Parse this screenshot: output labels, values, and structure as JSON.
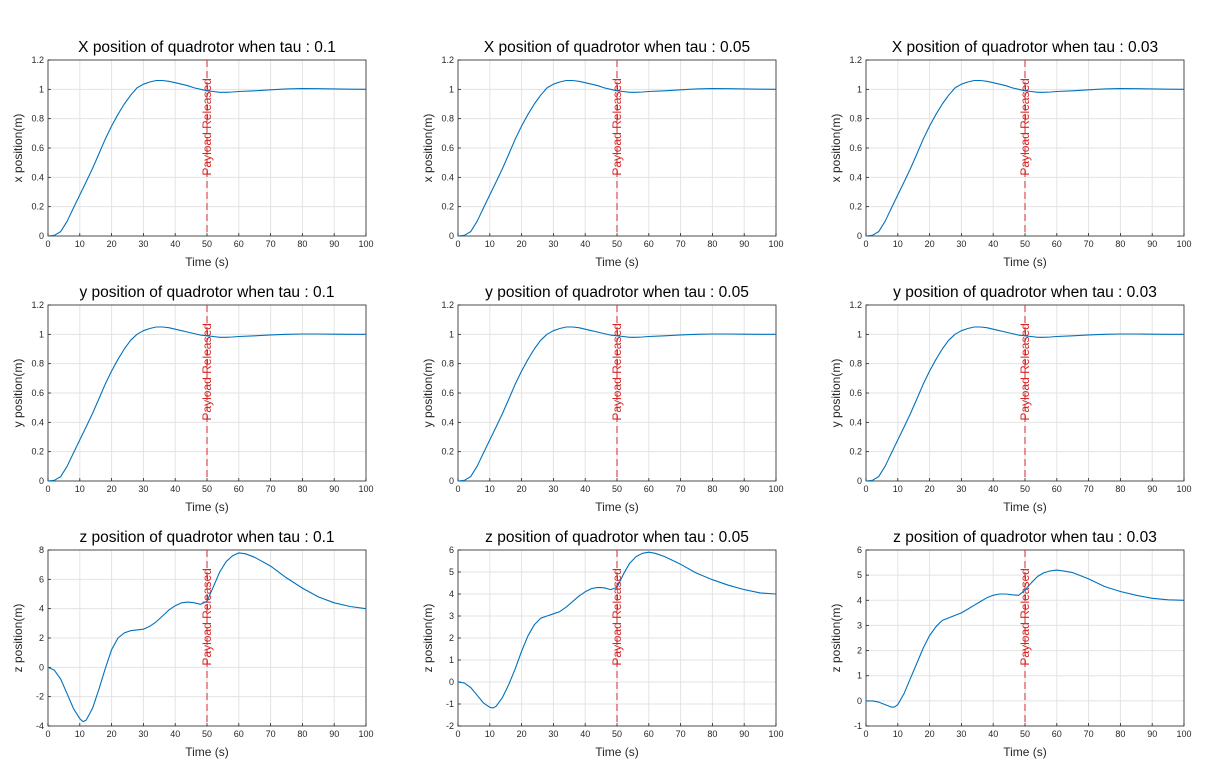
{
  "colors": {
    "line": "#0072BD",
    "annotation": "#d62728",
    "grid": "#e3e3e3",
    "axis": "#262626"
  },
  "chart_data": [
    {
      "type": "line",
      "title": "X position of quadrotor when tau : 0.1",
      "xlabel": "Time (s)",
      "ylabel": "x position(m)",
      "xlim": [
        0,
        100
      ],
      "ylim": [
        0,
        1.2
      ],
      "xticks": [
        0,
        10,
        20,
        30,
        40,
        50,
        60,
        70,
        80,
        90,
        100
      ],
      "yticks": [
        0,
        0.2,
        0.4,
        0.6,
        0.8,
        1,
        1.2
      ],
      "marker_x": 50,
      "annotation": "Payload Released",
      "x": [
        0,
        2,
        4,
        6,
        8,
        10,
        12,
        14,
        16,
        18,
        20,
        22,
        24,
        26,
        28,
        30,
        32,
        34,
        36,
        38,
        40,
        42,
        44,
        46,
        48,
        50,
        52,
        54,
        56,
        58,
        60,
        65,
        70,
        75,
        80,
        85,
        90,
        95,
        100
      ],
      "y": [
        0,
        0.005,
        0.03,
        0.1,
        0.19,
        0.28,
        0.37,
        0.46,
        0.56,
        0.66,
        0.75,
        0.83,
        0.9,
        0.96,
        1.01,
        1.035,
        1.05,
        1.06,
        1.06,
        1.055,
        1.045,
        1.035,
        1.025,
        1.01,
        1.0,
        0.99,
        0.985,
        0.98,
        0.98,
        0.982,
        0.985,
        0.99,
        0.997,
        1.003,
        1.005,
        1.004,
        1.003,
        1.001,
        1.0
      ]
    },
    {
      "type": "line",
      "title": "X position of quadrotor when tau : 0.05",
      "xlabel": "Time (s)",
      "ylabel": "x position(m)",
      "xlim": [
        0,
        100
      ],
      "ylim": [
        0,
        1.2
      ],
      "xticks": [
        0,
        10,
        20,
        30,
        40,
        50,
        60,
        70,
        80,
        90,
        100
      ],
      "yticks": [
        0,
        0.2,
        0.4,
        0.6,
        0.8,
        1,
        1.2
      ],
      "marker_x": 50,
      "annotation": "Payload Released",
      "x": [
        0,
        2,
        4,
        6,
        8,
        10,
        12,
        14,
        16,
        18,
        20,
        22,
        24,
        26,
        28,
        30,
        32,
        34,
        36,
        38,
        40,
        42,
        44,
        46,
        48,
        50,
        52,
        54,
        56,
        58,
        60,
        65,
        70,
        75,
        80,
        85,
        90,
        95,
        100
      ],
      "y": [
        0,
        0.005,
        0.03,
        0.1,
        0.19,
        0.28,
        0.37,
        0.46,
        0.56,
        0.66,
        0.75,
        0.83,
        0.9,
        0.96,
        1.01,
        1.035,
        1.05,
        1.06,
        1.06,
        1.055,
        1.045,
        1.035,
        1.025,
        1.01,
        1.0,
        0.99,
        0.985,
        0.98,
        0.98,
        0.982,
        0.985,
        0.99,
        0.997,
        1.003,
        1.005,
        1.004,
        1.003,
        1.001,
        1.0
      ]
    },
    {
      "type": "line",
      "title": "X position of quadrotor when tau : 0.03",
      "xlabel": "Time (s)",
      "ylabel": "x position(m)",
      "xlim": [
        0,
        100
      ],
      "ylim": [
        0,
        1.2
      ],
      "xticks": [
        0,
        10,
        20,
        30,
        40,
        50,
        60,
        70,
        80,
        90,
        100
      ],
      "yticks": [
        0,
        0.2,
        0.4,
        0.6,
        0.8,
        1,
        1.2
      ],
      "marker_x": 50,
      "annotation": "Payload Released",
      "x": [
        0,
        2,
        4,
        6,
        8,
        10,
        12,
        14,
        16,
        18,
        20,
        22,
        24,
        26,
        28,
        30,
        32,
        34,
        36,
        38,
        40,
        42,
        44,
        46,
        48,
        50,
        52,
        54,
        56,
        58,
        60,
        65,
        70,
        75,
        80,
        85,
        90,
        95,
        100
      ],
      "y": [
        0,
        0.005,
        0.03,
        0.1,
        0.19,
        0.28,
        0.37,
        0.46,
        0.56,
        0.66,
        0.75,
        0.83,
        0.9,
        0.96,
        1.01,
        1.035,
        1.05,
        1.06,
        1.06,
        1.055,
        1.045,
        1.035,
        1.025,
        1.01,
        1.0,
        0.99,
        0.985,
        0.98,
        0.98,
        0.982,
        0.985,
        0.99,
        0.997,
        1.003,
        1.005,
        1.004,
        1.003,
        1.001,
        1.0
      ]
    },
    {
      "type": "line",
      "title": "y position of quadrotor when tau : 0.1",
      "xlabel": "Time (s)",
      "ylabel": "y position(m)",
      "xlim": [
        0,
        100
      ],
      "ylim": [
        0,
        1.2
      ],
      "xticks": [
        0,
        10,
        20,
        30,
        40,
        50,
        60,
        70,
        80,
        90,
        100
      ],
      "yticks": [
        0,
        0.2,
        0.4,
        0.6,
        0.8,
        1,
        1.2
      ],
      "marker_x": 50,
      "annotation": "Payload Released",
      "x": [
        0,
        2,
        4,
        6,
        8,
        10,
        12,
        14,
        16,
        18,
        20,
        22,
        24,
        26,
        28,
        30,
        32,
        34,
        36,
        38,
        40,
        42,
        44,
        46,
        48,
        50,
        52,
        54,
        56,
        58,
        60,
        65,
        70,
        75,
        80,
        85,
        90,
        95,
        100
      ],
      "y": [
        0,
        0.005,
        0.03,
        0.1,
        0.19,
        0.28,
        0.37,
        0.46,
        0.56,
        0.66,
        0.75,
        0.83,
        0.9,
        0.96,
        1.0,
        1.025,
        1.04,
        1.05,
        1.05,
        1.045,
        1.035,
        1.025,
        1.015,
        1.005,
        0.995,
        0.99,
        0.985,
        0.98,
        0.98,
        0.982,
        0.985,
        0.99,
        0.996,
        1.0,
        1.002,
        1.002,
        1.001,
        1.0,
        1.0
      ]
    },
    {
      "type": "line",
      "title": "y position of quadrotor when tau : 0.05",
      "xlabel": "Time (s)",
      "ylabel": "y position(m)",
      "xlim": [
        0,
        100
      ],
      "ylim": [
        0,
        1.2
      ],
      "xticks": [
        0,
        10,
        20,
        30,
        40,
        50,
        60,
        70,
        80,
        90,
        100
      ],
      "yticks": [
        0,
        0.2,
        0.4,
        0.6,
        0.8,
        1,
        1.2
      ],
      "marker_x": 50,
      "annotation": "Payload Released",
      "x": [
        0,
        2,
        4,
        6,
        8,
        10,
        12,
        14,
        16,
        18,
        20,
        22,
        24,
        26,
        28,
        30,
        32,
        34,
        36,
        38,
        40,
        42,
        44,
        46,
        48,
        50,
        52,
        54,
        56,
        58,
        60,
        65,
        70,
        75,
        80,
        85,
        90,
        95,
        100
      ],
      "y": [
        0,
        0.005,
        0.03,
        0.1,
        0.19,
        0.28,
        0.37,
        0.46,
        0.56,
        0.66,
        0.75,
        0.83,
        0.9,
        0.96,
        1.0,
        1.025,
        1.04,
        1.05,
        1.05,
        1.045,
        1.035,
        1.025,
        1.015,
        1.005,
        0.995,
        0.99,
        0.985,
        0.98,
        0.98,
        0.982,
        0.985,
        0.99,
        0.996,
        1.0,
        1.002,
        1.002,
        1.001,
        1.0,
        1.0
      ]
    },
    {
      "type": "line",
      "title": "y position of quadrotor when tau : 0.03",
      "xlabel": "Time (s)",
      "ylabel": "y position(m)",
      "xlim": [
        0,
        100
      ],
      "ylim": [
        0,
        1.2
      ],
      "xticks": [
        0,
        10,
        20,
        30,
        40,
        50,
        60,
        70,
        80,
        90,
        100
      ],
      "yticks": [
        0,
        0.2,
        0.4,
        0.6,
        0.8,
        1,
        1.2
      ],
      "marker_x": 50,
      "annotation": "Payload Released",
      "x": [
        0,
        2,
        4,
        6,
        8,
        10,
        12,
        14,
        16,
        18,
        20,
        22,
        24,
        26,
        28,
        30,
        32,
        34,
        36,
        38,
        40,
        42,
        44,
        46,
        48,
        50,
        52,
        54,
        56,
        58,
        60,
        65,
        70,
        75,
        80,
        85,
        90,
        95,
        100
      ],
      "y": [
        0,
        0.005,
        0.03,
        0.1,
        0.19,
        0.28,
        0.37,
        0.46,
        0.56,
        0.66,
        0.75,
        0.83,
        0.9,
        0.96,
        1.0,
        1.025,
        1.04,
        1.05,
        1.05,
        1.045,
        1.035,
        1.025,
        1.015,
        1.005,
        0.995,
        0.99,
        0.985,
        0.98,
        0.98,
        0.982,
        0.985,
        0.99,
        0.996,
        1.0,
        1.002,
        1.002,
        1.001,
        1.0,
        1.0
      ]
    },
    {
      "type": "line",
      "title": "z position of quadrotor when tau : 0.1",
      "xlabel": "Time (s)",
      "ylabel": "z position(m)",
      "xlim": [
        0,
        100
      ],
      "ylim": [
        -4,
        8
      ],
      "xticks": [
        0,
        10,
        20,
        30,
        40,
        50,
        60,
        70,
        80,
        90,
        100
      ],
      "yticks": [
        -4,
        -2,
        0,
        2,
        4,
        6,
        8
      ],
      "marker_x": 50,
      "annotation": "Payload Released",
      "x": [
        0,
        2,
        4,
        6,
        8,
        10,
        11,
        12,
        14,
        16,
        18,
        20,
        22,
        24,
        26,
        28,
        30,
        32,
        34,
        36,
        38,
        40,
        42,
        44,
        46,
        48,
        50,
        52,
        54,
        56,
        58,
        60,
        62,
        65,
        70,
        75,
        80,
        85,
        90,
        95,
        100
      ],
      "y": [
        0,
        -0.2,
        -0.8,
        -1.8,
        -2.8,
        -3.5,
        -3.7,
        -3.6,
        -2.8,
        -1.5,
        -0.1,
        1.2,
        2.0,
        2.35,
        2.5,
        2.55,
        2.6,
        2.8,
        3.1,
        3.5,
        3.9,
        4.2,
        4.4,
        4.45,
        4.4,
        4.3,
        4.5,
        5.5,
        6.5,
        7.2,
        7.6,
        7.8,
        7.75,
        7.5,
        6.9,
        6.1,
        5.4,
        4.8,
        4.4,
        4.15,
        4.0
      ]
    },
    {
      "type": "line",
      "title": "z position of quadrotor when tau : 0.05",
      "xlabel": "Time (s)",
      "ylabel": "z position(m)",
      "xlim": [
        0,
        100
      ],
      "ylim": [
        -2,
        6
      ],
      "xticks": [
        0,
        10,
        20,
        30,
        40,
        50,
        60,
        70,
        80,
        90,
        100
      ],
      "yticks": [
        -2,
        -1,
        0,
        1,
        2,
        3,
        4,
        5,
        6
      ],
      "marker_x": 50,
      "annotation": "Payload Released",
      "x": [
        0,
        2,
        4,
        6,
        8,
        10,
        11,
        12,
        14,
        16,
        18,
        20,
        22,
        24,
        26,
        28,
        30,
        32,
        34,
        36,
        38,
        40,
        42,
        44,
        46,
        48,
        50,
        52,
        54,
        56,
        58,
        60,
        62,
        65,
        70,
        75,
        80,
        85,
        90,
        95,
        100
      ],
      "y": [
        0,
        -0.05,
        -0.25,
        -0.6,
        -0.95,
        -1.15,
        -1.18,
        -1.1,
        -0.7,
        -0.1,
        0.6,
        1.4,
        2.1,
        2.6,
        2.9,
        3.0,
        3.1,
        3.2,
        3.4,
        3.65,
        3.9,
        4.1,
        4.25,
        4.3,
        4.28,
        4.2,
        4.3,
        4.9,
        5.4,
        5.7,
        5.85,
        5.9,
        5.85,
        5.7,
        5.35,
        4.95,
        4.65,
        4.4,
        4.2,
        4.05,
        4.0
      ]
    },
    {
      "type": "line",
      "title": "z position of quadrotor when tau : 0.03",
      "xlabel": "Time (s)",
      "ylabel": "z position(m)",
      "xlim": [
        0,
        100
      ],
      "ylim": [
        -1,
        6
      ],
      "xticks": [
        0,
        10,
        20,
        30,
        40,
        50,
        60,
        70,
        80,
        90,
        100
      ],
      "yticks": [
        -1,
        0,
        1,
        2,
        3,
        4,
        5,
        6
      ],
      "marker_x": 50,
      "annotation": "Payload Released",
      "x": [
        0,
        2,
        4,
        6,
        8,
        9,
        10,
        12,
        14,
        16,
        18,
        20,
        22,
        24,
        26,
        28,
        30,
        32,
        34,
        36,
        38,
        40,
        42,
        44,
        46,
        48,
        50,
        52,
        54,
        56,
        58,
        60,
        62,
        65,
        70,
        75,
        80,
        85,
        90,
        95,
        100
      ],
      "y": [
        0,
        0.0,
        -0.05,
        -0.15,
        -0.25,
        -0.25,
        -0.15,
        0.3,
        0.9,
        1.5,
        2.1,
        2.6,
        2.95,
        3.2,
        3.3,
        3.4,
        3.5,
        3.65,
        3.8,
        3.95,
        4.1,
        4.2,
        4.25,
        4.25,
        4.22,
        4.2,
        4.4,
        4.7,
        4.95,
        5.1,
        5.17,
        5.2,
        5.17,
        5.1,
        4.85,
        4.55,
        4.35,
        4.2,
        4.08,
        4.02,
        4.0
      ]
    }
  ]
}
